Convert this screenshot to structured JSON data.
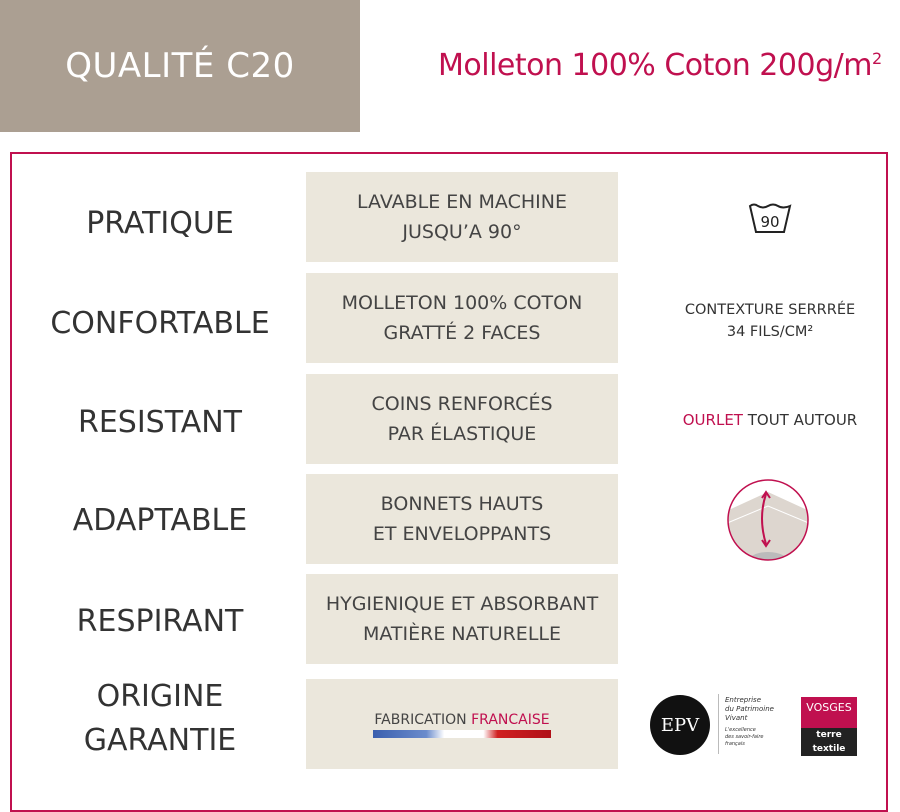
{
  "header": {
    "quality": "QUALITÉ C20",
    "subtitle": "Molleton 100% Coton 200g/m",
    "subtitle_sup": "2"
  },
  "colors": {
    "accent": "#c0104f",
    "header_bg": "#ab9f92",
    "box_bg": "#ebe7dc"
  },
  "rows": [
    {
      "label": "PRATIQUE",
      "line1": "LAVABLE EN MACHINE",
      "line2": "JUSQU’A 90°",
      "icon": "wash-90-icon",
      "icon_text": "90"
    },
    {
      "label": "CONFORTABLE",
      "line1": "MOLLETON 100% COTON",
      "line2": "GRATTÉ 2 FACES",
      "right1": "CONTEXTURE SERRRÉE",
      "right2": "34 FILS/CM²"
    },
    {
      "label": "RESISTANT",
      "line1": "COINS RENFORCÉS",
      "line2": "PAR ÉLASTIQUE",
      "right_accent": "OURLET",
      "right_rest": " TOUT AUTOUR"
    },
    {
      "label": "ADAPTABLE",
      "line1": "BONNETS HAUTS",
      "line2": "ET ENVELOPPANTS",
      "icon": "fitted-sheet-corner-icon"
    },
    {
      "label": "RESPIRANT",
      "line1": "HYGIENIQUE ET ABSORBANT",
      "line2": "MATIÈRE NATURELLE"
    },
    {
      "label1": "ORIGINE",
      "label2": "GARANTIE",
      "fab1": "FABRICATION ",
      "fab2": "FRANCAISE",
      "epv": {
        "logo": "EPV",
        "t1": "Entreprise",
        "t2": "du Patrimoine",
        "t3": "Vivant",
        "t4": "L'excellence",
        "t5": "des savoir-faire",
        "t6": "français"
      },
      "vosges": {
        "top": "VOSGES",
        "bottom": "terre textile"
      }
    }
  ]
}
